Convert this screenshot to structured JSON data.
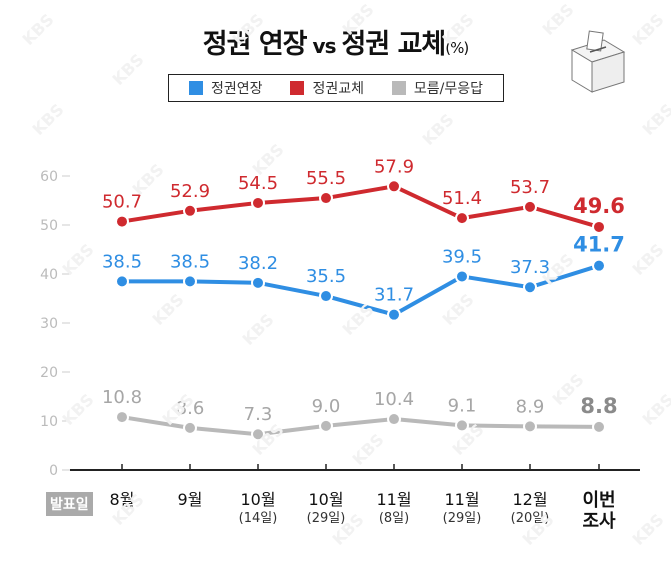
{
  "title": {
    "part1": "정권 연장",
    "vs": "vs",
    "part2": "정권 교체",
    "unit": "(%)"
  },
  "legend": {
    "items": [
      {
        "label": "정권연장",
        "color": "#2f8ee3"
      },
      {
        "label": "정권교체",
        "color": "#cf2a2f"
      },
      {
        "label": "모름/무응답",
        "color": "#b9b9b9"
      }
    ]
  },
  "publish_label": "발표일",
  "watermark_text": "KBS",
  "chart_data": {
    "type": "line",
    "categories": [
      {
        "main": "8월",
        "sub": ""
      },
      {
        "main": "9월",
        "sub": ""
      },
      {
        "main": "10월",
        "sub": "(14일)"
      },
      {
        "main": "10월",
        "sub": "(29일)"
      },
      {
        "main": "11월",
        "sub": "(8일)"
      },
      {
        "main": "11월",
        "sub": "(29일)"
      },
      {
        "main": "12월",
        "sub": "(20일)"
      },
      {
        "main": "이번 조사",
        "sub": ""
      }
    ],
    "yticks": [
      0,
      10,
      20,
      30,
      40,
      50,
      60
    ],
    "ylim": [
      0,
      60
    ],
    "series": [
      {
        "name": "정권교체",
        "color": "#cf2a2f",
        "values": [
          50.7,
          52.9,
          54.5,
          55.5,
          57.9,
          51.4,
          53.7,
          49.6
        ],
        "labels": [
          "50.7",
          "52.9",
          "54.5",
          "55.5",
          "57.9",
          "51.4",
          "53.7",
          "49.6"
        ]
      },
      {
        "name": "정권연장",
        "color": "#2f8ee3",
        "values": [
          38.5,
          38.5,
          38.2,
          35.5,
          31.7,
          39.5,
          37.3,
          41.7
        ],
        "labels": [
          "38.5",
          "38.5",
          "38.2",
          "35.5",
          "31.7",
          "39.5",
          "37.3",
          "41.7"
        ]
      },
      {
        "name": "모름/무응답",
        "color": "#b9b9b9",
        "values": [
          10.8,
          8.6,
          7.3,
          9.0,
          10.4,
          9.1,
          8.9,
          8.8
        ],
        "labels": [
          "10.8",
          "8.6",
          "7.3",
          "9.0",
          "10.4",
          "9.1",
          "8.9",
          "8.8"
        ]
      }
    ]
  }
}
